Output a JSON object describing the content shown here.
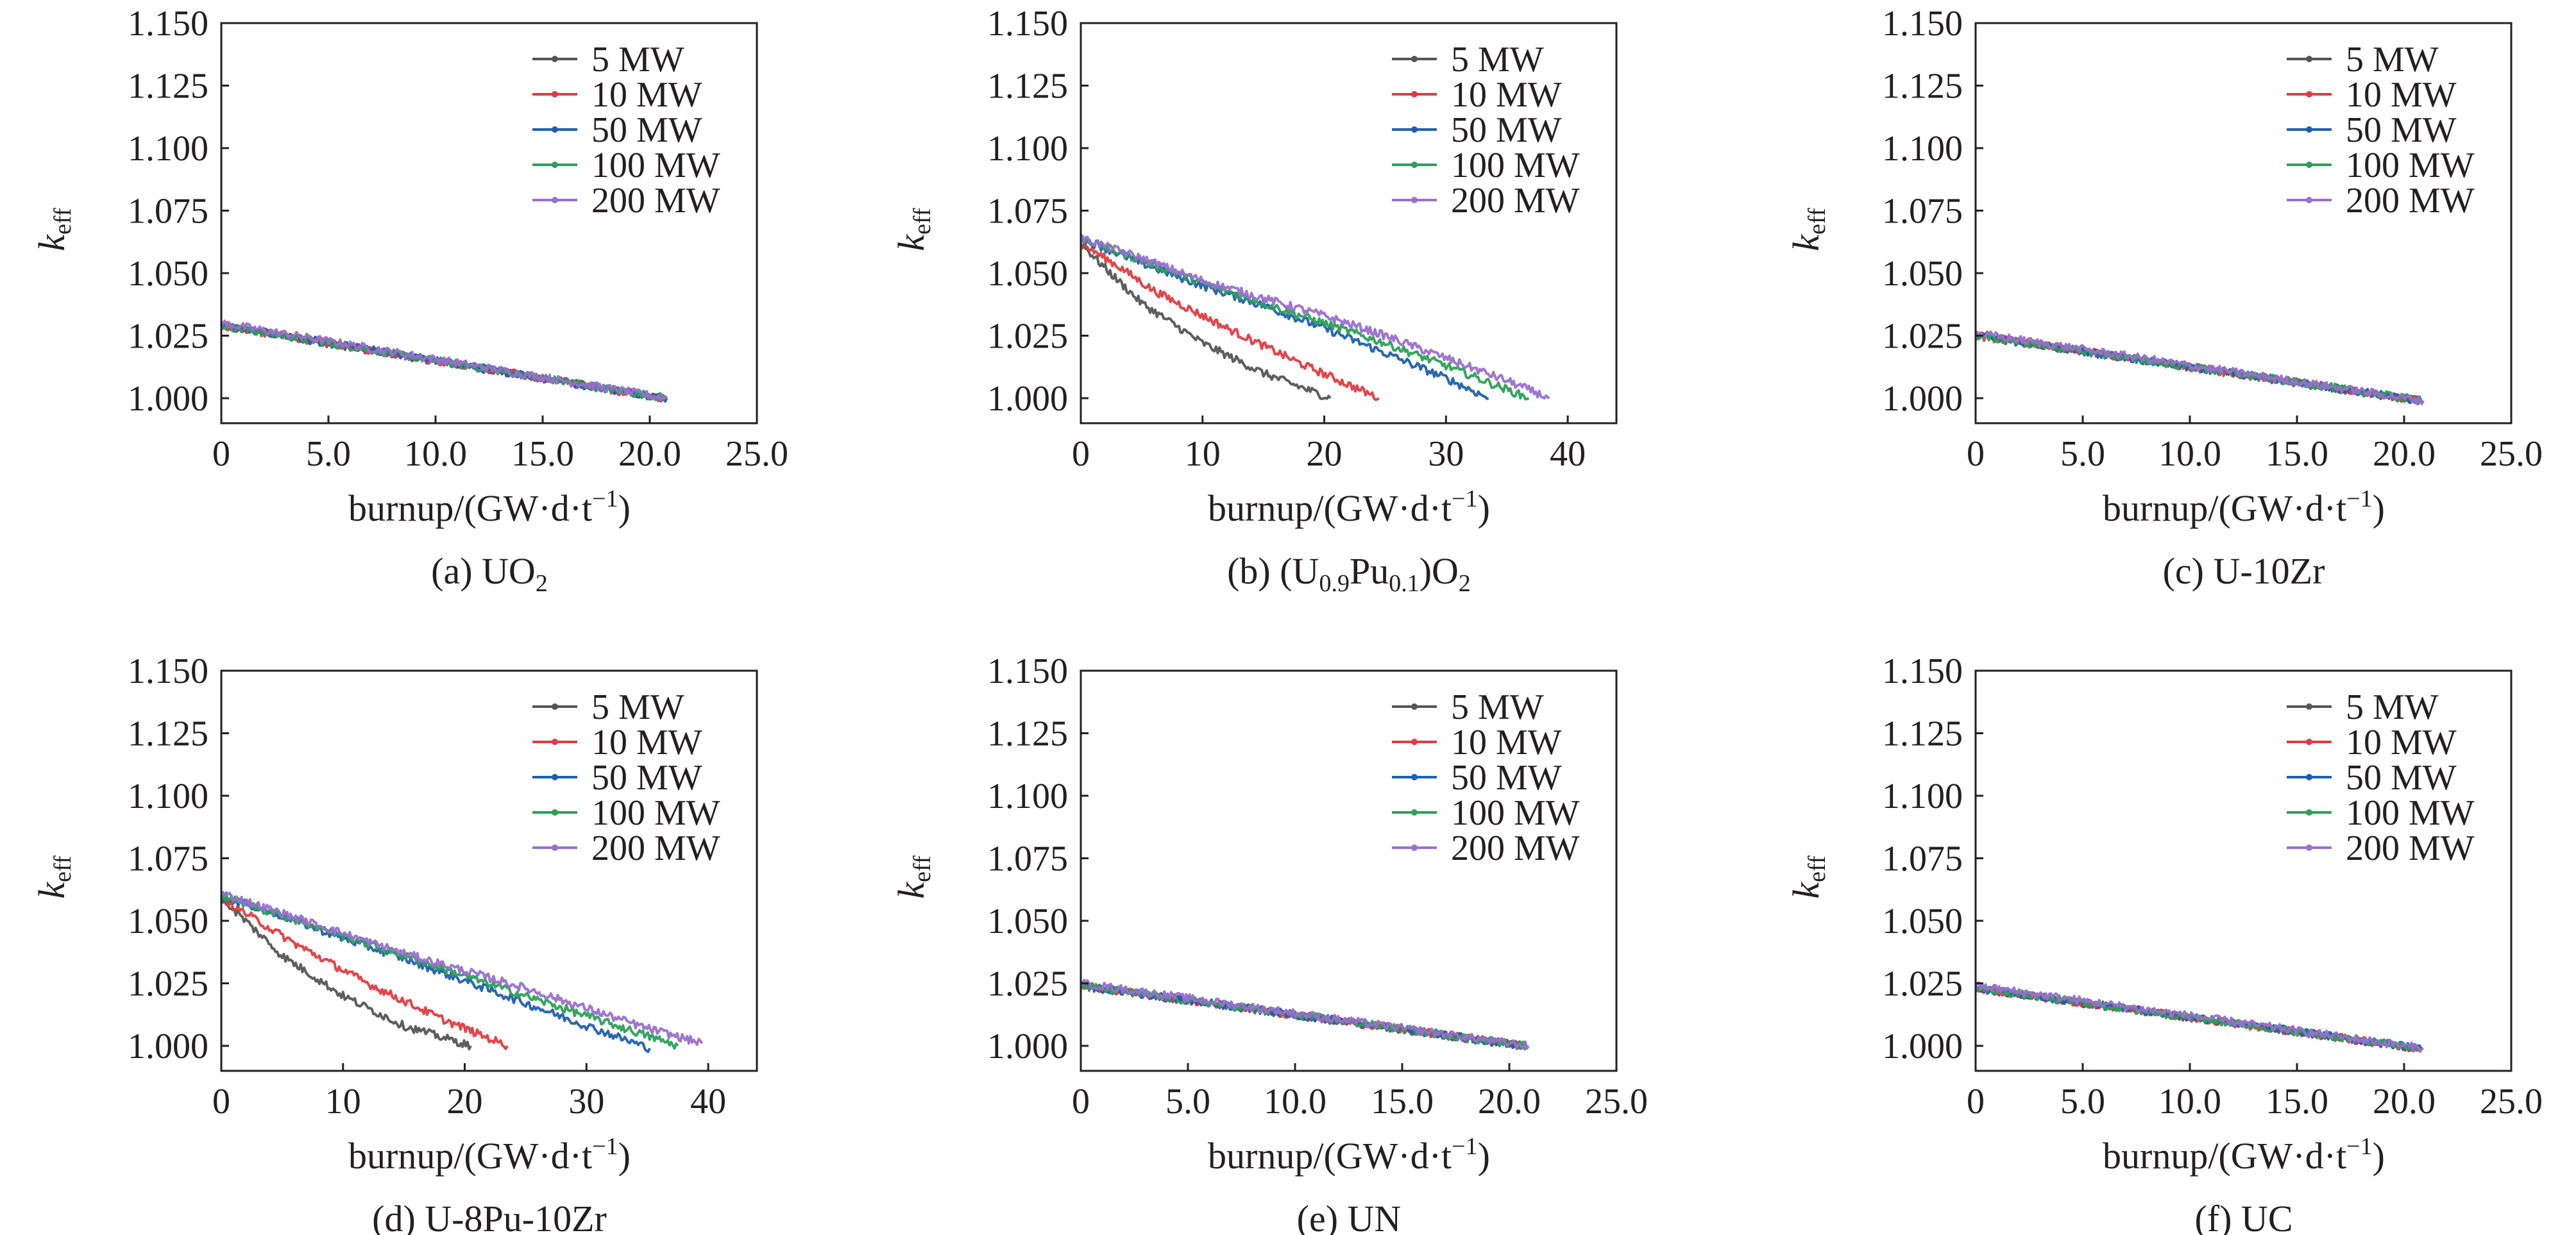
{
  "colors": {
    "axis": "#231f20",
    "series": [
      "#555555",
      "#e23b3f",
      "#1f5fad",
      "#2ca05a",
      "#9a6fcf"
    ]
  },
  "chart_data": [
    {
      "type": "line",
      "caption": "(a) UO",
      "caption_sub": "2",
      "caption_tail": "",
      "caption_sub2": "",
      "caption_tail2": "",
      "ylabel_main": "k",
      "ylabel_sub": "eff",
      "xlabel_main": "burnup/(GW·d·t",
      "xlabel_sup": "−1",
      "xlabel_tail": ")",
      "xlim": [
        0,
        25
      ],
      "ylim": [
        0.99,
        1.15
      ],
      "xticks": [
        0,
        5,
        10,
        15,
        20,
        25
      ],
      "xtick_labels": [
        "0",
        "5.0",
        "10.0",
        "15.0",
        "20.0",
        "25.0"
      ],
      "yticks": [
        1.0,
        1.025,
        1.05,
        1.075,
        1.1,
        1.125,
        1.15
      ],
      "ytick_labels": [
        "1.000",
        "1.025",
        "1.050",
        "1.075",
        "1.100",
        "1.125",
        "1.150"
      ],
      "legend_position": "top-right",
      "series": [
        {
          "name": "5 MW",
          "x": [
            0,
            20.6
          ],
          "y": [
            1.029,
            1.0
          ]
        },
        {
          "name": "10 MW",
          "x": [
            0,
            20.7
          ],
          "y": [
            1.029,
            1.0
          ]
        },
        {
          "name": "50 MW",
          "x": [
            0,
            20.8
          ],
          "y": [
            1.029,
            1.0
          ]
        },
        {
          "name": "100 MW",
          "x": [
            0,
            20.8
          ],
          "y": [
            1.029,
            1.0
          ]
        },
        {
          "name": "200 MW",
          "x": [
            0,
            20.8
          ],
          "y": [
            1.03,
            1.0
          ]
        }
      ]
    },
    {
      "type": "line",
      "caption": "(b) (U",
      "caption_sub": "0.9",
      "caption_tail": "Pu",
      "caption_sub2": "0.1",
      "caption_tail2": ")O",
      "caption_sub3": "2",
      "ylabel_main": "k",
      "ylabel_sub": "eff",
      "xlabel_main": "burnup/(GW·d·t",
      "xlabel_sup": "−1",
      "xlabel_tail": ")",
      "xlim": [
        0,
        44
      ],
      "ylim": [
        0.99,
        1.15
      ],
      "xticks": [
        0,
        10,
        20,
        30,
        40
      ],
      "xtick_labels": [
        "0",
        "10",
        "20",
        "30",
        "40"
      ],
      "yticks": [
        1.0,
        1.025,
        1.05,
        1.075,
        1.1,
        1.125,
        1.15
      ],
      "ytick_labels": [
        "1.000",
        "1.025",
        "1.050",
        "1.075",
        "1.100",
        "1.125",
        "1.150"
      ],
      "legend_position": "top-right",
      "series": [
        {
          "name": "5 MW",
          "x": [
            0,
            2,
            5,
            10,
            15,
            20.5
          ],
          "y": [
            1.062,
            1.052,
            1.038,
            1.022,
            1.01,
            1.0
          ]
        },
        {
          "name": "10 MW",
          "x": [
            0,
            3,
            6,
            12,
            18,
            24.5
          ],
          "y": [
            1.062,
            1.053,
            1.043,
            1.028,
            1.014,
            1.0
          ]
        },
        {
          "name": "50 MW",
          "x": [
            0,
            5,
            10,
            15,
            20,
            25,
            30,
            33.5
          ],
          "y": [
            1.064,
            1.054,
            1.045,
            1.037,
            1.028,
            1.018,
            1.008,
            1.0
          ]
        },
        {
          "name": "100 MW",
          "x": [
            0,
            5,
            10,
            15,
            20,
            25,
            30,
            36.8
          ],
          "y": [
            1.064,
            1.055,
            1.046,
            1.038,
            1.03,
            1.022,
            1.013,
            1.0
          ]
        },
        {
          "name": "200 MW",
          "x": [
            0,
            5,
            10,
            15,
            20,
            25,
            30,
            35,
            38.5
          ],
          "y": [
            1.064,
            1.056,
            1.047,
            1.04,
            1.033,
            1.025,
            1.016,
            1.007,
            1.0
          ]
        }
      ]
    },
    {
      "type": "line",
      "caption": "(c) U-10Zr",
      "caption_sub": "",
      "caption_tail": "",
      "caption_sub2": "",
      "caption_tail2": "",
      "ylabel_main": "k",
      "ylabel_sub": "eff",
      "xlabel_main": "burnup/(GW·d·t",
      "xlabel_sup": "−1",
      "xlabel_tail": ")",
      "xlim": [
        0,
        25
      ],
      "ylim": [
        0.99,
        1.15
      ],
      "xticks": [
        0,
        5,
        10,
        15,
        20,
        25
      ],
      "xtick_labels": [
        "0",
        "5.0",
        "10.0",
        "15.0",
        "20.0",
        "25.0"
      ],
      "yticks": [
        1.0,
        1.025,
        1.05,
        1.075,
        1.1,
        1.125,
        1.15
      ],
      "ytick_labels": [
        "1.000",
        "1.025",
        "1.050",
        "1.075",
        "1.100",
        "1.125",
        "1.150"
      ],
      "legend_position": "top-right",
      "series": [
        {
          "name": "5 MW",
          "x": [
            0,
            20.7
          ],
          "y": [
            1.025,
            0.999
          ]
        },
        {
          "name": "10 MW",
          "x": [
            0,
            20.8
          ],
          "y": [
            1.025,
            0.999
          ]
        },
        {
          "name": "50 MW",
          "x": [
            0,
            20.8
          ],
          "y": [
            1.025,
            0.999
          ]
        },
        {
          "name": "100 MW",
          "x": [
            0,
            20.9
          ],
          "y": [
            1.025,
            0.999
          ]
        },
        {
          "name": "200 MW",
          "x": [
            0,
            20.9
          ],
          "y": [
            1.026,
            0.999
          ]
        }
      ]
    },
    {
      "type": "line",
      "caption": "(d) U-8Pu-10Zr",
      "caption_sub": "",
      "caption_tail": "",
      "caption_sub2": "",
      "caption_tail2": "",
      "ylabel_main": "k",
      "ylabel_sub": "eff",
      "xlabel_main": "burnup/(GW·d·t",
      "xlabel_sup": "−1",
      "xlabel_tail": ")",
      "xlim": [
        0,
        44
      ],
      "ylim": [
        0.99,
        1.15
      ],
      "xticks": [
        0,
        10,
        20,
        30,
        40
      ],
      "xtick_labels": [
        "0",
        "10",
        "20",
        "30",
        "40"
      ],
      "yticks": [
        1.0,
        1.025,
        1.05,
        1.075,
        1.1,
        1.125,
        1.15
      ],
      "ytick_labels": [
        "1.000",
        "1.025",
        "1.050",
        "1.075",
        "1.100",
        "1.125",
        "1.150"
      ],
      "legend_position": "top-right",
      "series": [
        {
          "name": "5 MW",
          "x": [
            0,
            2,
            5,
            10,
            15,
            20.5
          ],
          "y": [
            1.059,
            1.05,
            1.036,
            1.02,
            1.008,
            1.0
          ]
        },
        {
          "name": "10 MW",
          "x": [
            0,
            3,
            6,
            12,
            18,
            23.5
          ],
          "y": [
            1.059,
            1.05,
            1.041,
            1.025,
            1.011,
            1.0
          ]
        },
        {
          "name": "50 MW",
          "x": [
            0,
            5,
            10,
            15,
            20,
            25,
            30,
            35.2
          ],
          "y": [
            1.06,
            1.052,
            1.043,
            1.035,
            1.026,
            1.017,
            1.008,
            0.999
          ]
        },
        {
          "name": "100 MW",
          "x": [
            0,
            5,
            10,
            15,
            20,
            25,
            30,
            37.5
          ],
          "y": [
            1.06,
            1.052,
            1.044,
            1.036,
            1.028,
            1.02,
            1.012,
            1.0
          ]
        },
        {
          "name": "200 MW",
          "x": [
            0,
            5,
            10,
            15,
            20,
            25,
            30,
            35,
            39.5
          ],
          "y": [
            1.061,
            1.053,
            1.045,
            1.037,
            1.03,
            1.023,
            1.015,
            1.007,
            1.001
          ]
        }
      ]
    },
    {
      "type": "line",
      "caption": "(e) UN",
      "caption_sub": "",
      "caption_tail": "",
      "caption_sub2": "",
      "caption_tail2": "",
      "ylabel_main": "k",
      "ylabel_sub": "eff",
      "xlabel_main": "burnup/(GW·d·t",
      "xlabel_sup": "−1",
      "xlabel_tail": ")",
      "xlim": [
        0,
        25
      ],
      "ylim": [
        0.99,
        1.15
      ],
      "xticks": [
        0,
        5,
        10,
        15,
        20,
        25
      ],
      "xtick_labels": [
        "0",
        "5.0",
        "10.0",
        "15.0",
        "20.0",
        "25.0"
      ],
      "yticks": [
        1.0,
        1.025,
        1.05,
        1.075,
        1.1,
        1.125,
        1.15
      ],
      "ytick_labels": [
        "1.000",
        "1.025",
        "1.050",
        "1.075",
        "1.100",
        "1.125",
        "1.150"
      ],
      "legend_position": "top-right",
      "series": [
        {
          "name": "5 MW",
          "x": [
            0,
            20.6
          ],
          "y": [
            1.024,
            1.0
          ]
        },
        {
          "name": "10 MW",
          "x": [
            0,
            20.7
          ],
          "y": [
            1.024,
            1.0
          ]
        },
        {
          "name": "50 MW",
          "x": [
            0,
            20.8
          ],
          "y": [
            1.024,
            1.0
          ]
        },
        {
          "name": "100 MW",
          "x": [
            0,
            20.8
          ],
          "y": [
            1.024,
            1.0
          ]
        },
        {
          "name": "200 MW",
          "x": [
            0,
            20.9
          ],
          "y": [
            1.025,
            1.0
          ]
        }
      ]
    },
    {
      "type": "line",
      "caption": "(f) UC",
      "caption_sub": "",
      "caption_tail": "",
      "caption_sub2": "",
      "caption_tail2": "",
      "ylabel_main": "k",
      "ylabel_sub": "eff",
      "xlabel_main": "burnup/(GW·d·t",
      "xlabel_sup": "−1",
      "xlabel_tail": ")",
      "xlim": [
        0,
        25
      ],
      "ylim": [
        0.99,
        1.15
      ],
      "xticks": [
        0,
        5,
        10,
        15,
        20,
        25
      ],
      "xtick_labels": [
        "0",
        "5.0",
        "10.0",
        "15.0",
        "20.0",
        "25.0"
      ],
      "yticks": [
        1.0,
        1.025,
        1.05,
        1.075,
        1.1,
        1.125,
        1.15
      ],
      "ytick_labels": [
        "1.000",
        "1.025",
        "1.050",
        "1.075",
        "1.100",
        "1.125",
        "1.150"
      ],
      "legend_position": "top-right",
      "series": [
        {
          "name": "5 MW",
          "x": [
            0,
            20.6
          ],
          "y": [
            1.023,
            0.999
          ]
        },
        {
          "name": "10 MW",
          "x": [
            0,
            20.7
          ],
          "y": [
            1.023,
            0.999
          ]
        },
        {
          "name": "50 MW",
          "x": [
            0,
            20.8
          ],
          "y": [
            1.023,
            0.999
          ]
        },
        {
          "name": "100 MW",
          "x": [
            0,
            20.8
          ],
          "y": [
            1.023,
            0.999
          ]
        },
        {
          "name": "200 MW",
          "x": [
            0,
            20.9
          ],
          "y": [
            1.024,
            0.999
          ]
        }
      ]
    }
  ]
}
